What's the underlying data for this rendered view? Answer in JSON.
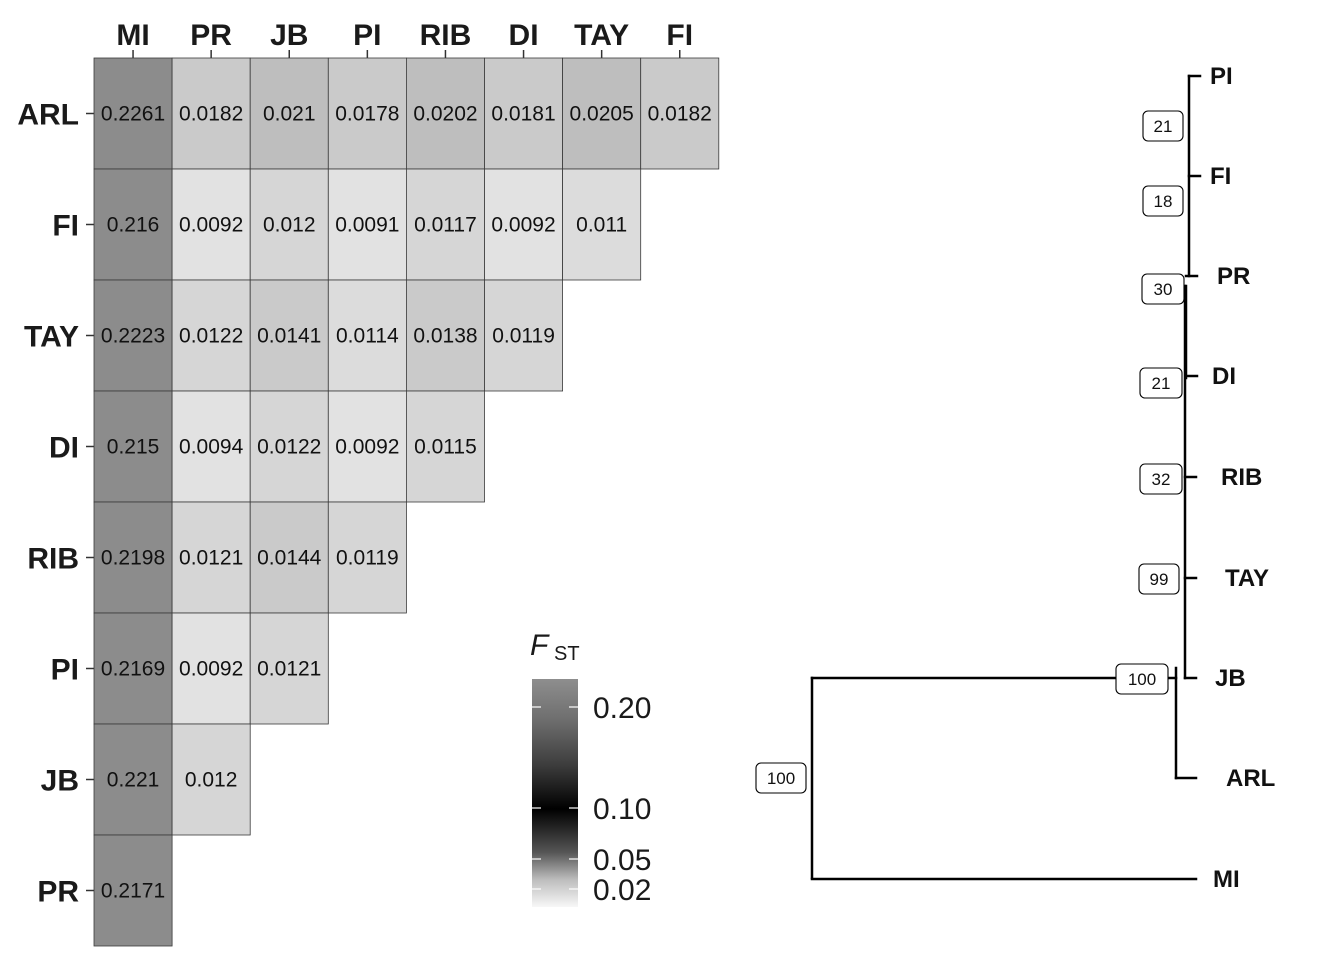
{
  "chart_data": [
    {
      "type": "heatmap",
      "title": "",
      "columns": [
        "MI",
        "PR",
        "JB",
        "PI",
        "RIB",
        "DI",
        "TAY",
        "FI"
      ],
      "rows": [
        "ARL",
        "FI",
        "TAY",
        "DI",
        "RIB",
        "PI",
        "JB",
        "PR"
      ],
      "values": [
        [
          "0.2261",
          "0.0182",
          "0.021",
          "0.0178",
          "0.0202",
          "0.0181",
          "0.0205",
          "0.0182"
        ],
        [
          "0.216",
          "0.0092",
          "0.012",
          "0.0091",
          "0.0117",
          "0.0092",
          "0.011"
        ],
        [
          "0.2223",
          "0.0122",
          "0.0141",
          "0.0114",
          "0.0138",
          "0.0119"
        ],
        [
          "0.215",
          "0.0094",
          "0.0122",
          "0.0092",
          "0.0115"
        ],
        [
          "0.2198",
          "0.0121",
          "0.0144",
          "0.0119"
        ],
        [
          "0.2169",
          "0.0092",
          "0.0121"
        ],
        [
          "0.221",
          "0.012"
        ],
        [
          "0.2171"
        ]
      ],
      "legend": {
        "title_main": "F",
        "title_sub": "ST",
        "ticks": [
          "0.20",
          "0.10",
          "0.05",
          "0.02"
        ],
        "placement": "bottom-center"
      },
      "colors": {
        "low": "#f2f2f2",
        "mid": "#000000",
        "high": "#8a8a8a"
      }
    },
    {
      "type": "tree",
      "tips": [
        "PI",
        "FI",
        "PR",
        "DI",
        "RIB",
        "TAY",
        "JB",
        "ARL",
        "MI"
      ],
      "bootstrap": [
        "21",
        "18",
        "30",
        "21",
        "32",
        "99",
        "100",
        "100"
      ],
      "line_color": "#000000"
    }
  ]
}
